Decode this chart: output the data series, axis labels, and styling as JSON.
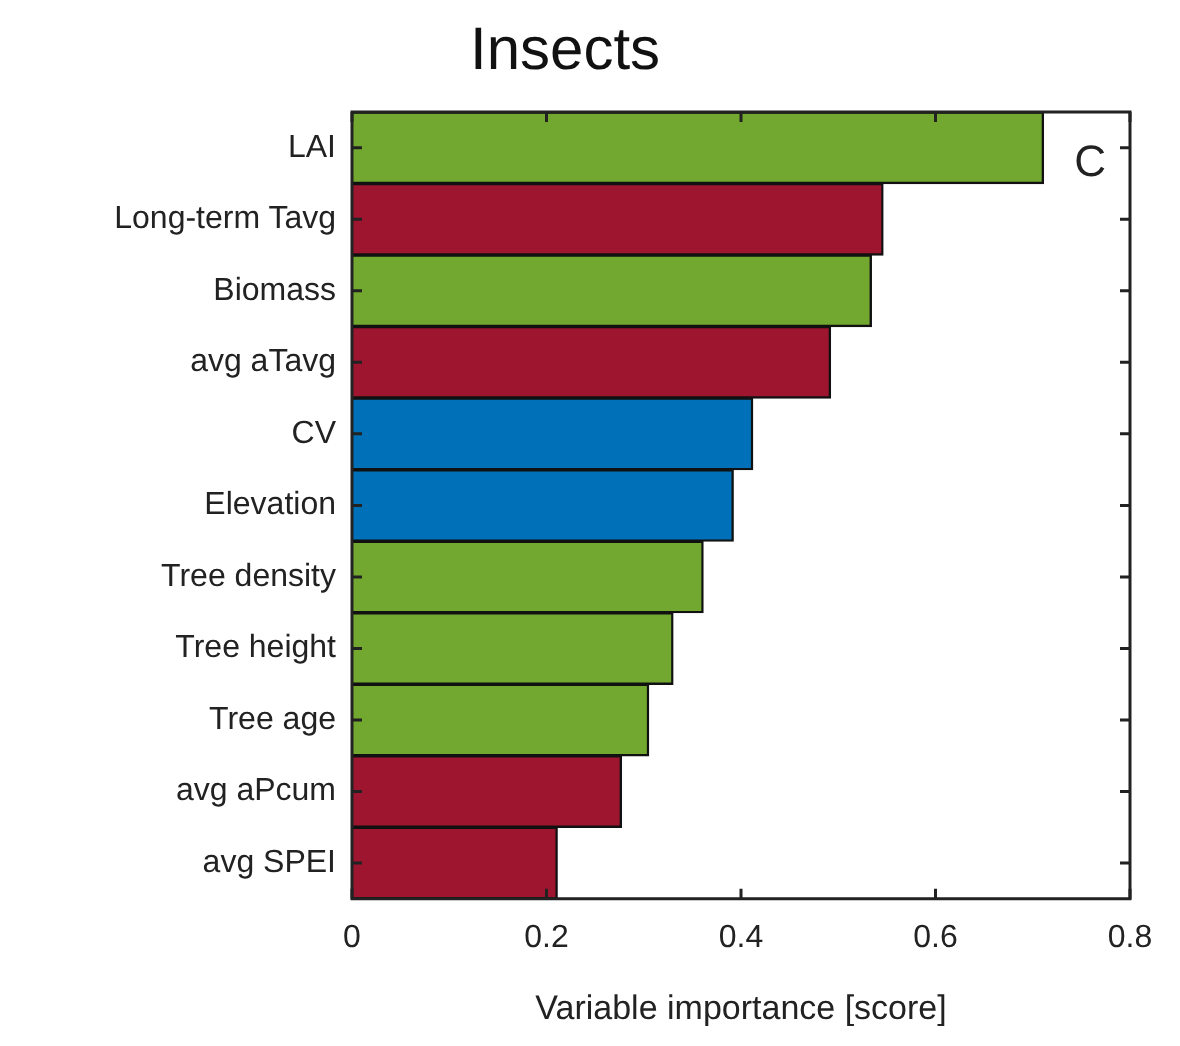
{
  "chart_data": {
    "type": "bar",
    "orientation": "horizontal",
    "title": "Insects",
    "xlabel": "Variable importance [score]",
    "categories": [
      "LAI",
      "Long-term Tavg",
      "Biomass",
      "avg aTavg",
      "CV",
      "Elevation",
      "Tree density",
      "Tree height",
      "Tree age",
      "avg aPcum",
      "avg SPEI"
    ],
    "values": [
      0.711,
      0.546,
      0.534,
      0.492,
      0.412,
      0.392,
      0.361,
      0.33,
      0.305,
      0.277,
      0.211
    ],
    "colors": [
      "#72a82f",
      "#9e1530",
      "#72a82f",
      "#9e1530",
      "#0070b8",
      "#0070b8",
      "#72a82f",
      "#72a82f",
      "#72a82f",
      "#9e1530",
      "#9e1530"
    ],
    "xlim": [
      0,
      0.8
    ],
    "xticks": [
      0,
      0.2,
      0.4,
      0.6,
      0.8
    ],
    "annotations": [
      "C"
    ],
    "grid": false,
    "legend": false
  }
}
